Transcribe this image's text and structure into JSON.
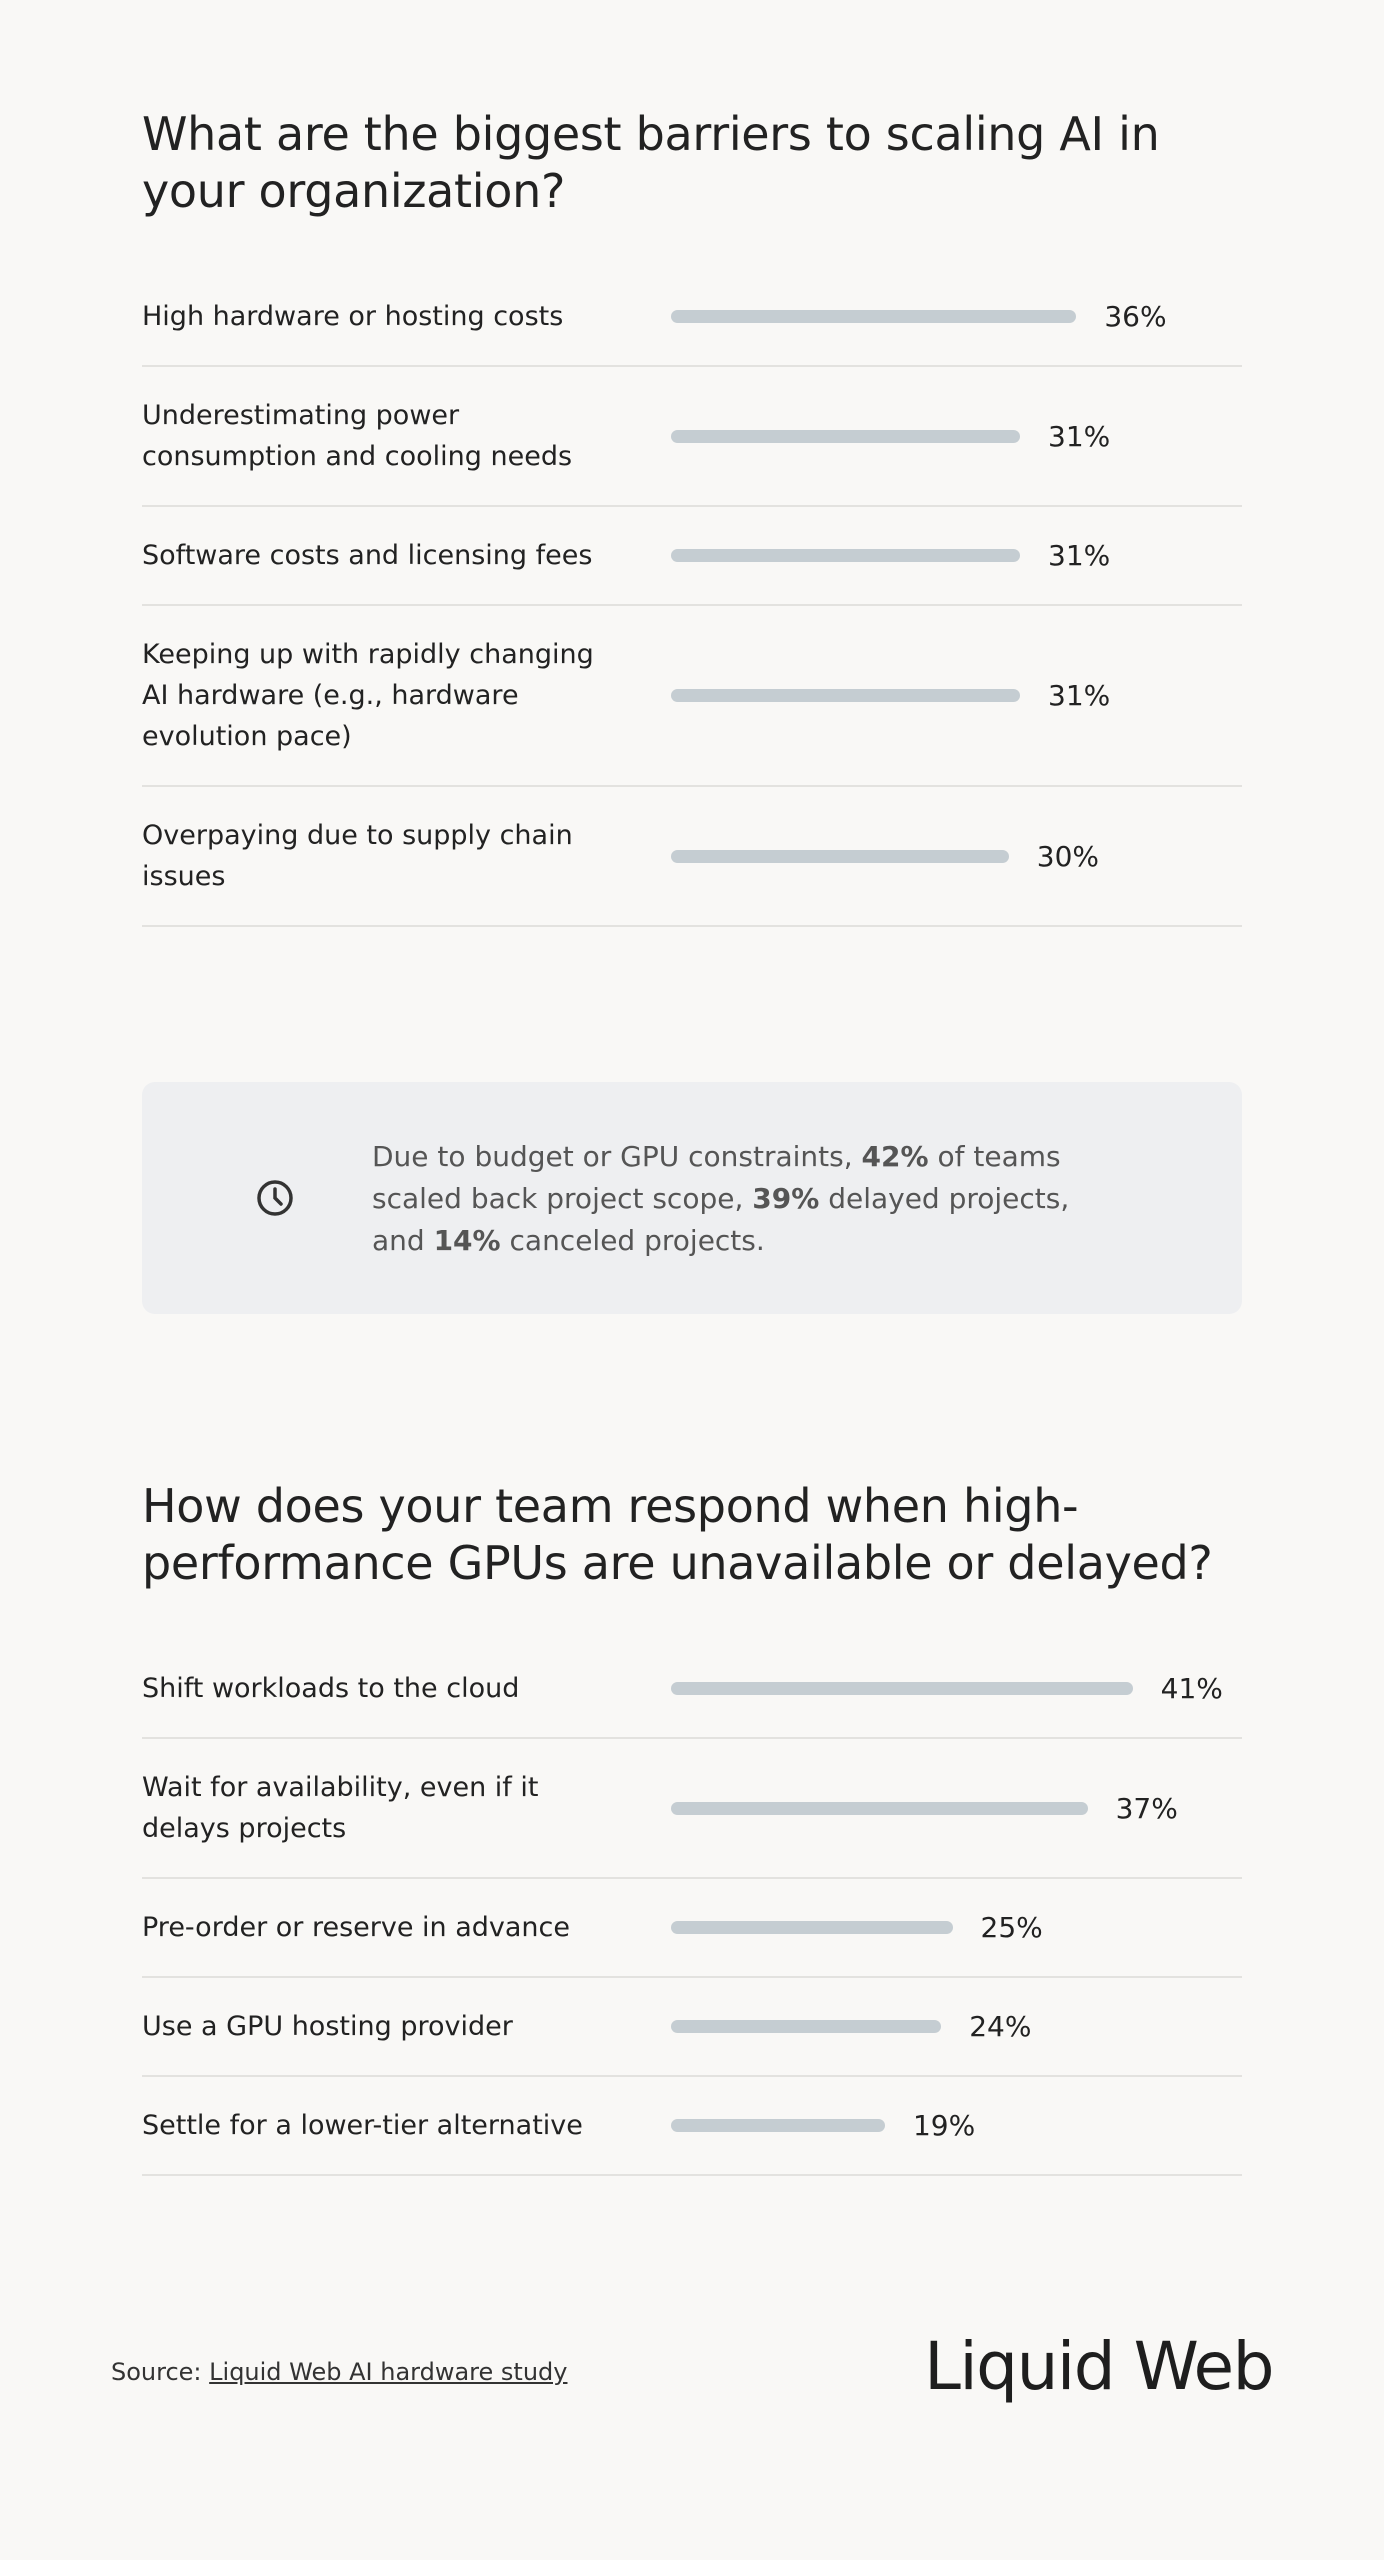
{
  "chart_data": [
    {
      "type": "bar",
      "title": "What are the biggest barriers to scaling AI in your organization?",
      "categories": [
        "High hardware or hosting costs",
        "Underestimating power consumption and cooling needs",
        "Software costs and licensing fees",
        "Keeping up with rapidly changing AI hardware (e.g., hardware evolution pace)",
        "Overpaying due to supply chain issues"
      ],
      "values": [
        36,
        31,
        31,
        31,
        30
      ],
      "value_labels": [
        "36%",
        "31%",
        "31%",
        "31%",
        "30%"
      ],
      "color": "#c5cdd2"
    },
    {
      "type": "bar",
      "title": "How does your team respond when high-performance GPUs are unavailable or delayed?",
      "categories": [
        "Shift workloads to the cloud",
        "Wait for availability, even if it delays projects",
        "Pre-order or reserve in advance",
        "Use a GPU hosting provider",
        "Settle for a lower-tier alternative"
      ],
      "values": [
        41,
        37,
        25,
        24,
        19
      ],
      "value_labels": [
        "41%",
        "37%",
        "25%",
        "24%",
        "19%"
      ],
      "color": "#c5cdd2"
    }
  ],
  "callout": {
    "parts": [
      "Due to budget or GPU constraints, ",
      "42%",
      " of teams scaled back project scope, ",
      "39%",
      " delayed projects,",
      "and ",
      "14%",
      " canceled projects."
    ]
  },
  "footer": {
    "source_label": "Source:",
    "source_link": "Liquid Web AI hardware study",
    "logo": "Liquid Web"
  }
}
